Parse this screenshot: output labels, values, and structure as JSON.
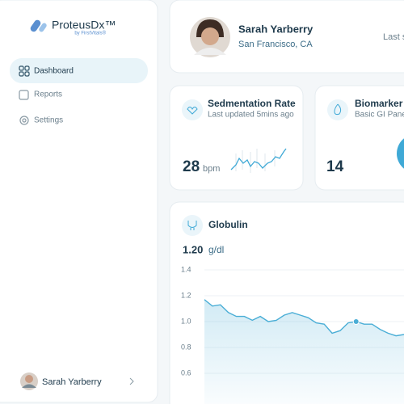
{
  "sidebar": {
    "logo": {
      "name": "ProteusDx™",
      "byline": "by FirstVitals®"
    },
    "nav": [
      {
        "label": "Dashboard",
        "active": true
      },
      {
        "label": "Reports",
        "active": false
      },
      {
        "label": "Settings",
        "active": false
      }
    ],
    "user": "Sarah Yarberry"
  },
  "header": {
    "name": "Sarah Yarberry",
    "location": "San Francisco, CA",
    "status": "Last s"
  },
  "cards": [
    {
      "title": "Sedmentation Rate",
      "subtitle": "Last updated 5mins ago",
      "value": "28",
      "unit": "bpm"
    },
    {
      "title": "Biomarker",
      "subtitle": "Basic GI Pane",
      "value": "14"
    }
  ],
  "globulin": {
    "title": "Globulin",
    "value": "1.20",
    "unit": "g/dl",
    "chart": {
      "type": "line",
      "color": "#4aaed6",
      "grid": true,
      "ylim": [
        0.6,
        1.4
      ],
      "yticks": [
        1.4,
        1.2,
        {
          "value": 1,
          "label": "1.0"
        },
        0.8,
        0.6
      ],
      "values": [
        1.17,
        1.12,
        1.13,
        1.07,
        1.04,
        1.04,
        1.01,
        1.04,
        1.0,
        1.01,
        1.05,
        1.07,
        1.05,
        1.03,
        0.99,
        0.98,
        0.91,
        0.93,
        0.99,
        1.0,
        0.98,
        0.98,
        0.94,
        0.91,
        0.89,
        0.9
      ],
      "highlight_index": 19
    }
  }
}
